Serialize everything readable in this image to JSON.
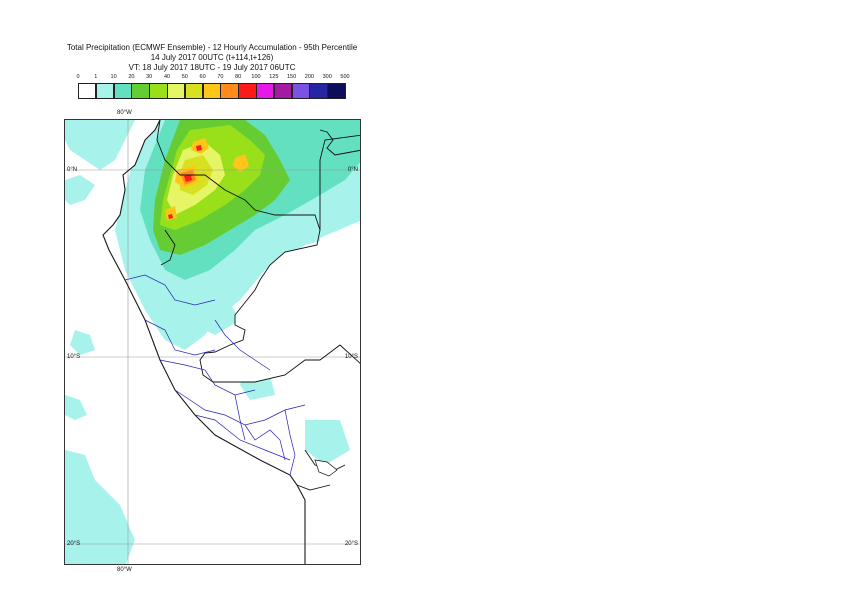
{
  "header": {
    "title": "Total Precipitation (ECMWF Ensemble) - 12 Hourly Accumulation - 95th Percentile",
    "init_line": "14 July 2017 00UTC (t+114,t+126)",
    "valid_line": "VT: 18 July 2017 18UTC - 19 July 2017 06UTC"
  },
  "legend": {
    "thresholds": [
      "0",
      "1",
      "10",
      "20",
      "30",
      "40",
      "50",
      "60",
      "70",
      "80",
      "100",
      "125",
      "150",
      "200",
      "300",
      "500"
    ],
    "colors": [
      "#ffffff",
      "#a8f2ec",
      "#62e0c0",
      "#66cc33",
      "#99e01a",
      "#e6f566",
      "#d9e01f",
      "#ffc61a",
      "#ff8c1a",
      "#ff1a1a",
      "#e61ae6",
      "#a31aa3",
      "#7a52e6",
      "#2626a3",
      "#0d0d59"
    ]
  },
  "map": {
    "lon_label_top": "80°W",
    "lon_label_bottom": "80°W",
    "lat_labels": {
      "eq_left": "0°N",
      "eq_right": "0°N",
      "s10_left": "10°S",
      "s10_right": "10°S",
      "s20_left": "20°S",
      "s20_right": "20°S"
    }
  }
}
